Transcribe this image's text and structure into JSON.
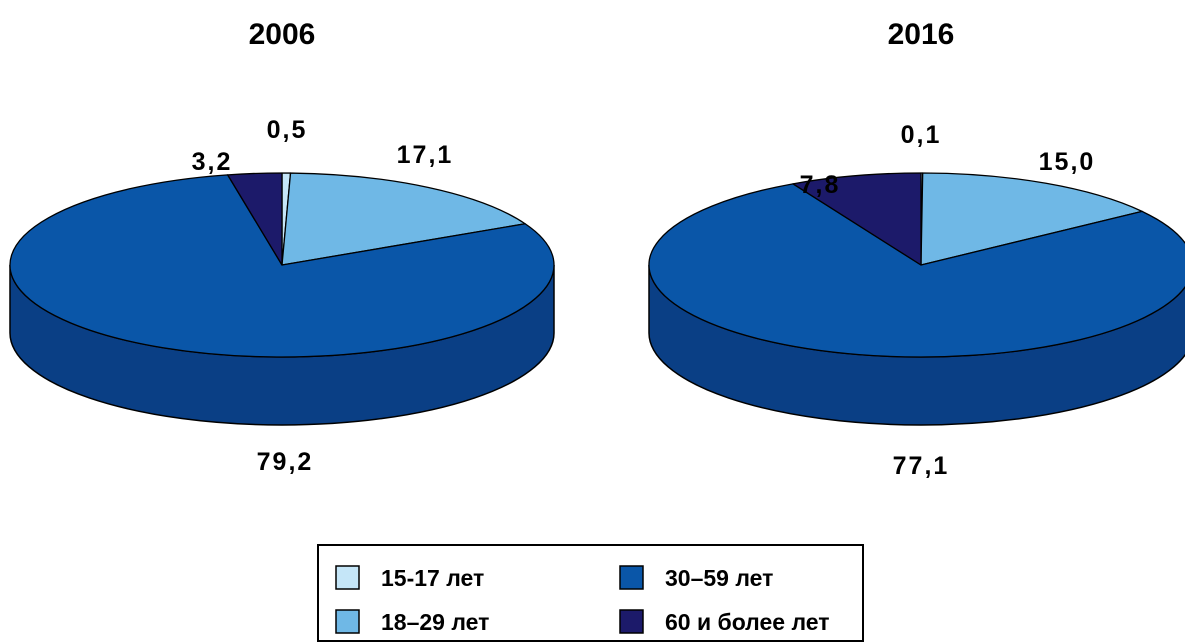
{
  "chart_data": [
    {
      "type": "pie",
      "title": "2006",
      "series": [
        {
          "name": "15-17 лет",
          "value": 0.5,
          "label": "0,5"
        },
        {
          "name": "18–29 лет",
          "value": 17.1,
          "label": "17,1"
        },
        {
          "name": "30–59 лет",
          "value": 79.2,
          "label": "79,2"
        },
        {
          "name": "60 и более лет",
          "value": 3.2,
          "label": "3,2"
        }
      ]
    },
    {
      "type": "pie",
      "title": "2016",
      "series": [
        {
          "name": "15-17 лет",
          "value": 0.1,
          "label": "0,1"
        },
        {
          "name": "18–29 лет",
          "value": 15.0,
          "label": "15,0"
        },
        {
          "name": "30–59 лет",
          "value": 77.1,
          "label": "77,1"
        },
        {
          "name": "60 и более лет",
          "value": 7.8,
          "label": "7,8"
        }
      ]
    }
  ],
  "legend": {
    "placement": "bottom-center",
    "items": [
      {
        "label": "15-17 лет",
        "color": "#c5e6f8"
      },
      {
        "label": "30–59 лет",
        "color": "#0a56a8"
      },
      {
        "label": "18–29 лет",
        "color": "#6fb8e6"
      },
      {
        "label": "60 и более лет",
        "color": "#1c1a6a"
      }
    ]
  },
  "colors": {
    "15-17 лет": "#c5e6f8",
    "18–29 лет": "#6fb8e6",
    "30–59 лет": "#0a56a8",
    "60 и более лет": "#1c1a6a",
    "side": "#0a3f85",
    "outline": "#000000"
  }
}
